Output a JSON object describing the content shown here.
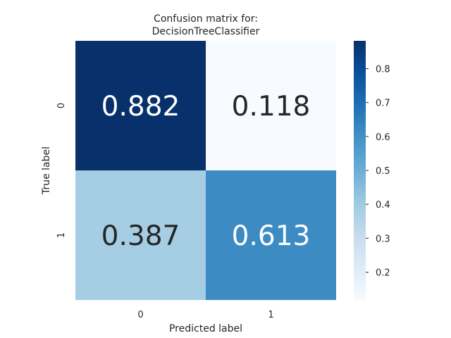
{
  "chart_data": {
    "type": "heatmap",
    "title_lines": [
      "Confusion matrix for:",
      "DecisionTreeClassifier"
    ],
    "xlabel": "Predicted label",
    "ylabel": "True label",
    "x_categories": [
      "0",
      "1"
    ],
    "y_categories": [
      "0",
      "1"
    ],
    "values": [
      [
        0.882,
        0.118
      ],
      [
        0.387,
        0.613
      ]
    ],
    "value_labels": [
      [
        "0.882",
        "0.118"
      ],
      [
        "0.387",
        "0.613"
      ]
    ],
    "colormap": "Blues",
    "colorbar": {
      "range": [
        0.118,
        0.882
      ],
      "ticks": [
        0.2,
        0.3,
        0.4,
        0.5,
        0.6,
        0.7,
        0.8
      ],
      "tick_labels": [
        "0.2",
        "0.3",
        "0.4",
        "0.5",
        "0.6",
        "0.7",
        "0.8"
      ]
    },
    "colors": {
      "cmap_stops": [
        "#f7fbff",
        "#deebf7",
        "#c6dbef",
        "#9ecae1",
        "#6baed6",
        "#4292c6",
        "#2171b5",
        "#08519c",
        "#08306b"
      ],
      "dark_text": "#262626",
      "light_text": "#ffffff"
    }
  }
}
